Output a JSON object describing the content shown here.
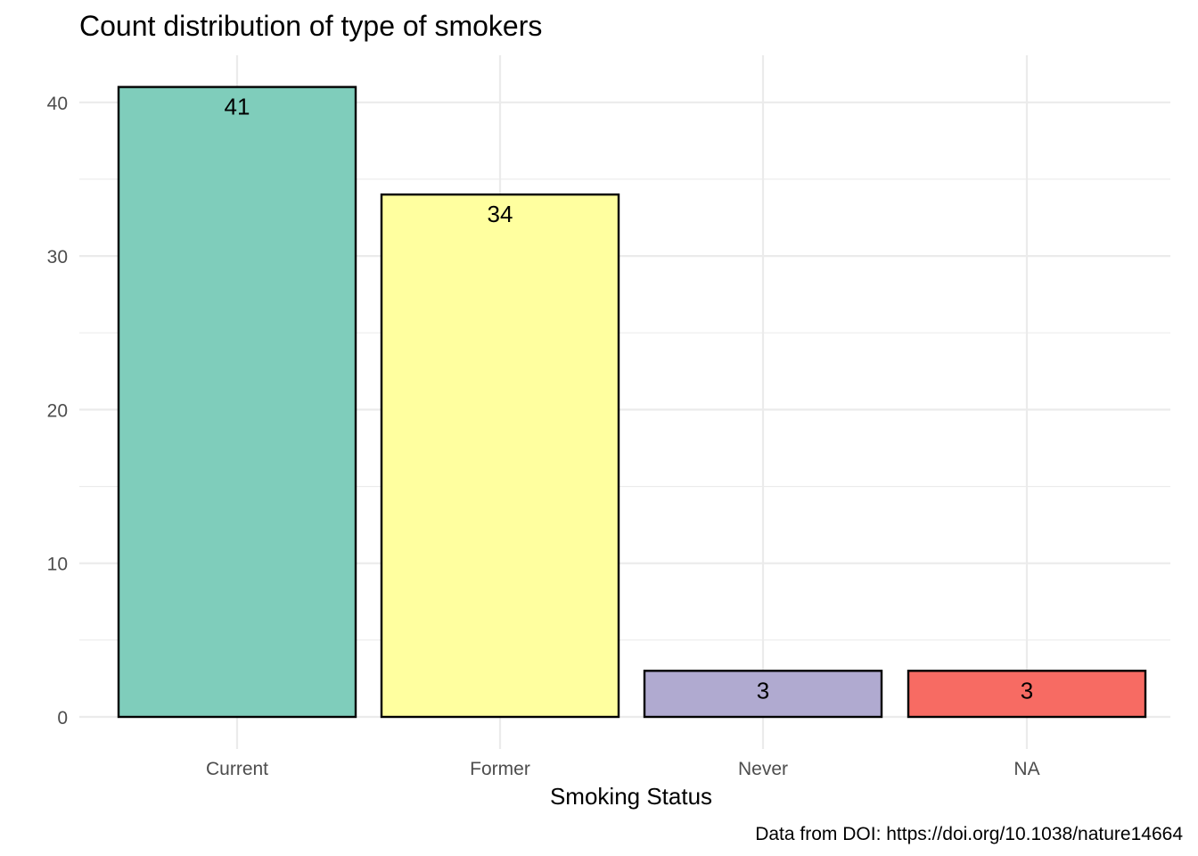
{
  "chart_data": {
    "type": "bar",
    "title": "Count distribution of type of smokers",
    "xlabel": "Smoking Status",
    "ylabel": "",
    "caption": "Data from DOI: https://doi.org/10.1038/nature14664",
    "categories": [
      "Current",
      "Former",
      "Never",
      "NA"
    ],
    "values": [
      41,
      34,
      3,
      3
    ],
    "colors": [
      "#7fcdbb",
      "#ffff9f",
      "#b0aad0",
      "#f76b63"
    ],
    "bar_outline_color": "#000000",
    "ylim": [
      0,
      41
    ],
    "y_ticks": [
      0,
      10,
      20,
      30,
      40
    ],
    "y_tick_labels": [
      "0",
      "10",
      "20",
      "30",
      "40"
    ],
    "y_minor_ticks": [
      5,
      15,
      25,
      35
    ],
    "data_labels": [
      "41",
      "34",
      "3",
      "3"
    ],
    "grid": true,
    "legend": "none"
  }
}
